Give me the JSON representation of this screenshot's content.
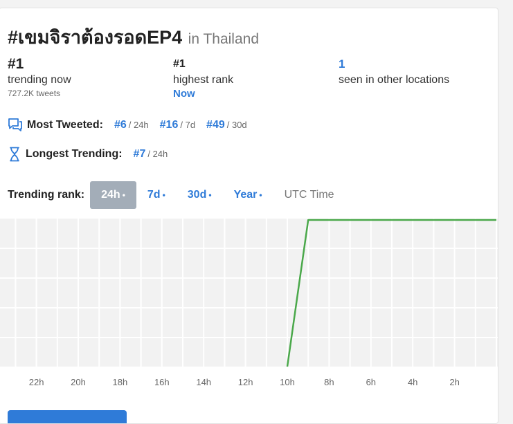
{
  "header": {
    "hashtag": "#เขมจิราต้องรอดEP4",
    "location": "in Thailand"
  },
  "stats": {
    "trending_now": {
      "value": "#1",
      "label": "trending now",
      "tweets": "727.2K tweets"
    },
    "highest_rank": {
      "value": "#1",
      "label": "highest rank",
      "when": "Now"
    },
    "other_locations": {
      "value": "1",
      "label": "seen in other locations"
    }
  },
  "most_tweeted": {
    "label": "Most Tweeted:",
    "items": [
      {
        "rank": "#6",
        "period": "/ 24h"
      },
      {
        "rank": "#16",
        "period": "/ 7d"
      },
      {
        "rank": "#49",
        "period": "/ 30d"
      }
    ]
  },
  "longest_trending": {
    "label": "Longest Trending:",
    "items": [
      {
        "rank": "#7",
        "period": "/ 24h"
      }
    ]
  },
  "trending_rank": {
    "label": "Trending rank:",
    "tabs": [
      {
        "label": "24h",
        "active": true
      },
      {
        "label": "7d",
        "active": false
      },
      {
        "label": "30d",
        "active": false
      },
      {
        "label": "Year",
        "active": false
      }
    ],
    "dot": "•",
    "utc_label": "UTC Time"
  },
  "chart_data": {
    "type": "line",
    "x_tick_labels": [
      "22h",
      "20h",
      "18h",
      "16h",
      "14h",
      "12h",
      "10h",
      "8h",
      "6h",
      "4h",
      "2h"
    ],
    "series": [
      {
        "points": [
          {
            "hours_ago": 10,
            "rank": "off chart"
          },
          {
            "hours_ago": 9,
            "rank": 1
          },
          {
            "hours_ago": 0,
            "rank": 1
          }
        ]
      }
    ],
    "grid": true,
    "colors": {
      "line": "#4aa84a",
      "grid": "#ffffff",
      "background": "#f2f2f2"
    }
  }
}
